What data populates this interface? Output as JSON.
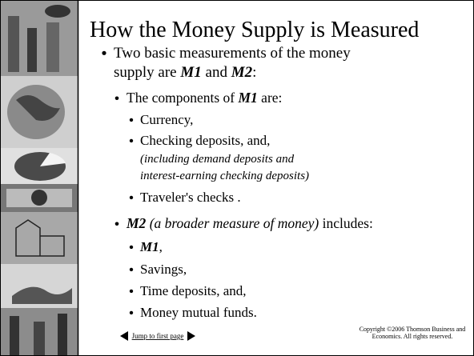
{
  "slide": {
    "title": "How the Money Supply is Measured",
    "items": [
      {
        "level": 1,
        "lines": [
          [
            {
              "text": "Two basic measurements of the money"
            }
          ],
          [
            {
              "text": "supply are "
            },
            {
              "text": "M1",
              "style": "bold-italic"
            },
            {
              "text": " and "
            },
            {
              "text": "M2",
              "style": "bold-italic"
            },
            {
              "text": ":"
            }
          ]
        ]
      },
      {
        "level": 2,
        "lines": [
          [
            {
              "text": "The components of "
            },
            {
              "text": "M1",
              "style": "bold-italic"
            },
            {
              "text": " are:"
            }
          ]
        ]
      },
      {
        "level": 3,
        "lines": [
          [
            {
              "text": "Currency,"
            }
          ]
        ]
      },
      {
        "level": 3,
        "lines": [
          [
            {
              "text": "Checking deposits, and,"
            }
          ]
        ],
        "note": [
          "(including demand deposits and",
          "interest-earning checking deposits)"
        ]
      },
      {
        "level": 3,
        "lines": [
          [
            {
              "text": "Traveler's checks ."
            }
          ]
        ]
      },
      {
        "level": 2,
        "lines": [
          [
            {
              "text": "M2",
              "style": "bold-italic"
            },
            {
              "text": " (a broader measure of money)",
              "style": "italic"
            },
            {
              "text": " includes:"
            }
          ]
        ]
      },
      {
        "level": 3,
        "lines": [
          [
            {
              "text": "M1",
              "style": "bold-italic"
            },
            {
              "text": ","
            }
          ]
        ]
      },
      {
        "level": 3,
        "lines": [
          [
            {
              "text": "Savings,"
            }
          ]
        ]
      },
      {
        "level": 3,
        "lines": [
          [
            {
              "text": "Time deposits, and,"
            }
          ]
        ]
      },
      {
        "level": 3,
        "lines": [
          [
            {
              "text": "Money mutual funds."
            }
          ]
        ]
      }
    ],
    "footer": {
      "link": "Jump to first page",
      "copyright": [
        "Copyright ©2006  Thomson Business and",
        "Economics. All rights reserved."
      ]
    }
  }
}
